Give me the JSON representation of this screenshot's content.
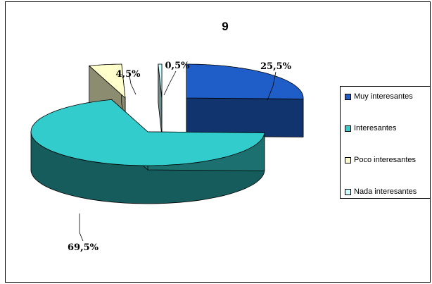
{
  "chart_data": {
    "type": "pie",
    "title": "9",
    "slices": [
      {
        "label": "Muy interesantes",
        "value": 25.5,
        "data_label": "25,5%",
        "color": "#1F5DC8"
      },
      {
        "label": "Interesantes",
        "value": 69.5,
        "data_label": "69,5%",
        "color": "#33CCCC"
      },
      {
        "label": "Poco interesantes",
        "value": 4.5,
        "data_label": "4,5%",
        "color": "#FFFFCC"
      },
      {
        "label": "Nada interesantes",
        "value": 0.5,
        "data_label": "0,5%",
        "color": "#CCFFFF"
      }
    ],
    "legend": {
      "position": "right"
    },
    "style": "3d-exploded"
  }
}
